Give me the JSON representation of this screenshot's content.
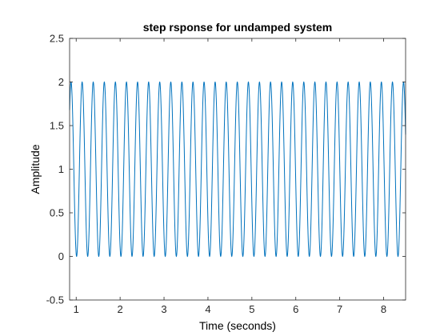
{
  "chart_data": {
    "type": "line",
    "title": "step rsponse for undamped system",
    "xlabel": "Time (seconds)",
    "ylabel": "Amplitude",
    "xlim": [
      0.85,
      8.5
    ],
    "ylim": [
      -0.5,
      2.5
    ],
    "x_ticks": [
      "1",
      "2",
      "3",
      "4",
      "5",
      "6",
      "7",
      "8"
    ],
    "x_tick_values": [
      1,
      2,
      3,
      4,
      5,
      6,
      7,
      8
    ],
    "y_ticks": [
      "-0.5",
      "0",
      "0.5",
      "1",
      "1.5",
      "2",
      "2.5"
    ],
    "y_tick_values": [
      -0.5,
      0,
      0.5,
      1,
      1.5,
      2,
      2.5
    ],
    "grid": false,
    "series": [
      {
        "function": "1 - cos(omega * t)",
        "omega": 24.9,
        "t_start": 0.85,
        "t_end": 8.5,
        "min": 0,
        "max": 2,
        "color": "#0072BD"
      }
    ]
  }
}
